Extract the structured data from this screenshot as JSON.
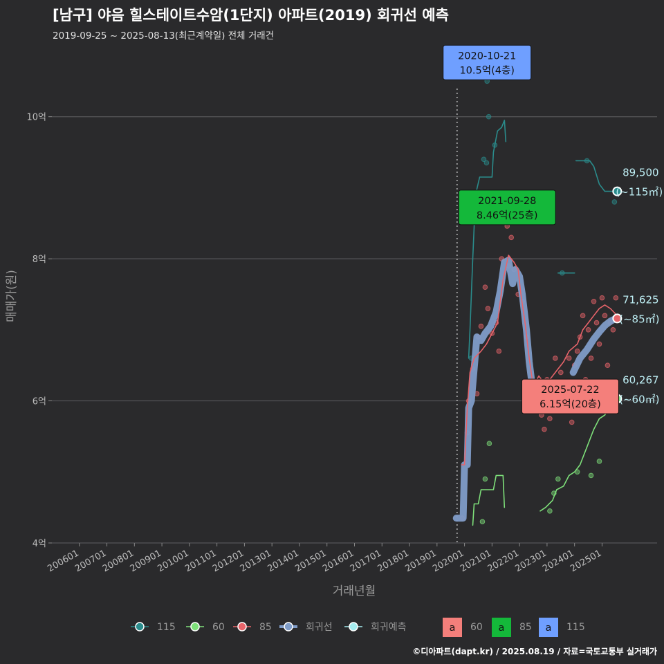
{
  "header": {
    "title": "[남구] 야음 힐스테이트수암(1단지) 아파트(2019) 회귀선 예측",
    "subtitle": "2019-09-25 ~ 2025-08-13(최근계약일) 전체 거래건"
  },
  "footer": {
    "credit": "©디아파트(dapt.kr) / 2025.08.19 / 자료=국토교통부 실거래가"
  },
  "chart_data": {
    "type": "line",
    "xlabel": "거래년월",
    "ylabel": "매매가(원)",
    "x_range": [
      2005.0,
      2027.0
    ],
    "ylim": [
      4.0,
      11.0
    ],
    "y_ticks": [
      {
        "value": 4,
        "label": "4억"
      },
      {
        "value": 6,
        "label": "6억"
      },
      {
        "value": 8,
        "label": "8억"
      },
      {
        "value": 10,
        "label": "10억"
      }
    ],
    "x_ticks": [
      {
        "value": 2006.0,
        "label": "200601"
      },
      {
        "value": 2007.0,
        "label": "200701"
      },
      {
        "value": 2008.0,
        "label": "200801"
      },
      {
        "value": 2009.0,
        "label": "200901"
      },
      {
        "value": 2010.0,
        "label": "201001"
      },
      {
        "value": 2011.0,
        "label": "201101"
      },
      {
        "value": 2012.0,
        "label": "201201"
      },
      {
        "value": 2013.0,
        "label": "201301"
      },
      {
        "value": 2014.0,
        "label": "201401"
      },
      {
        "value": 2015.0,
        "label": "201501"
      },
      {
        "value": 2016.0,
        "label": "201601"
      },
      {
        "value": 2017.0,
        "label": "201701"
      },
      {
        "value": 2018.0,
        "label": "201801"
      },
      {
        "value": 2019.0,
        "label": "201901"
      },
      {
        "value": 2020.0,
        "label": "202001"
      },
      {
        "value": 2021.0,
        "label": "202101"
      },
      {
        "value": 2022.0,
        "label": "202201"
      },
      {
        "value": 2023.0,
        "label": "202301"
      },
      {
        "value": 2024.0,
        "label": "202401"
      },
      {
        "value": 2025.0,
        "label": "202501"
      }
    ],
    "vline_x": 2019.73,
    "series": [
      {
        "name": "115",
        "color": "#2a8c8c",
        "lines": [
          [
            [
              2020.15,
              6.6
            ],
            [
              2020.2,
              7.0
            ],
            [
              2020.3,
              8.0
            ],
            [
              2020.4,
              8.9
            ],
            [
              2020.55,
              9.15
            ],
            [
              2021.0,
              9.15
            ],
            [
              2021.05,
              9.5
            ],
            [
              2021.2,
              9.8
            ],
            [
              2021.35,
              9.85
            ],
            [
              2021.45,
              9.95
            ],
            [
              2021.5,
              9.65
            ]
          ],
          [
            [
              2023.4,
              7.8
            ],
            [
              2023.6,
              7.8
            ],
            [
              2024.0,
              7.8
            ]
          ],
          [
            [
              2024.05,
              9.38
            ],
            [
              2024.55,
              9.38
            ],
            [
              2024.7,
              9.3
            ],
            [
              2024.9,
              9.05
            ],
            [
              2025.1,
              8.95
            ],
            [
              2025.3,
              8.95
            ],
            [
              2025.5,
              8.95
            ]
          ]
        ],
        "points": [
          [
            2020.25,
            6.6
          ],
          [
            2020.4,
            8.65
          ],
          [
            2020.7,
            9.4
          ],
          [
            2020.8,
            9.35
          ],
          [
            2020.82,
            10.5
          ],
          [
            2020.88,
            10.0
          ],
          [
            2021.1,
            9.6
          ],
          [
            2023.55,
            7.8
          ],
          [
            2024.45,
            9.38
          ],
          [
            2025.45,
            8.8
          ]
        ]
      },
      {
        "name": "60",
        "color": "#7ee07a",
        "lines": [
          [
            [
              2020.3,
              4.25
            ],
            [
              2020.35,
              4.55
            ],
            [
              2020.5,
              4.55
            ],
            [
              2020.6,
              4.75
            ],
            [
              2020.8,
              4.75
            ],
            [
              2021.05,
              4.75
            ],
            [
              2021.15,
              4.95
            ],
            [
              2021.4,
              4.95
            ],
            [
              2021.45,
              4.5
            ]
          ],
          [
            [
              2022.75,
              4.45
            ],
            [
              2022.95,
              4.5
            ],
            [
              2023.2,
              4.6
            ],
            [
              2023.35,
              4.75
            ],
            [
              2023.6,
              4.8
            ],
            [
              2023.8,
              4.95
            ],
            [
              2024.0,
              5.0
            ],
            [
              2024.2,
              5.1
            ],
            [
              2024.45,
              5.35
            ],
            [
              2024.7,
              5.6
            ],
            [
              2024.9,
              5.75
            ],
            [
              2025.1,
              5.8
            ],
            [
              2025.3,
              5.95
            ],
            [
              2025.45,
              6.0
            ],
            [
              2025.55,
              6.03
            ]
          ]
        ],
        "points": [
          [
            2020.65,
            4.3
          ],
          [
            2020.75,
            4.9
          ],
          [
            2020.9,
            5.4
          ],
          [
            2023.1,
            4.45
          ],
          [
            2023.25,
            4.7
          ],
          [
            2023.4,
            4.9
          ],
          [
            2024.1,
            5.0
          ],
          [
            2024.6,
            4.95
          ],
          [
            2024.9,
            5.15
          ],
          [
            2025.0,
            5.9
          ],
          [
            2025.3,
            6.1
          ]
        ]
      },
      {
        "name": "85",
        "color": "#e8646a",
        "lines": [
          [
            [
              2019.9,
              5.1
            ],
            [
              2020.0,
              5.1
            ],
            [
              2020.1,
              5.9
            ],
            [
              2020.2,
              6.4
            ],
            [
              2020.35,
              6.6
            ],
            [
              2020.6,
              6.7
            ],
            [
              2020.8,
              6.8
            ],
            [
              2021.0,
              6.95
            ],
            [
              2021.2,
              7.1
            ],
            [
              2021.4,
              7.7
            ],
            [
              2021.6,
              8.05
            ],
            [
              2021.8,
              7.95
            ],
            [
              2021.95,
              7.85
            ],
            [
              2022.05,
              7.5
            ],
            [
              2022.2,
              7.1
            ],
            [
              2022.35,
              6.6
            ],
            [
              2022.5,
              6.2
            ],
            [
              2022.7,
              6.35
            ],
            [
              2022.9,
              6.25
            ],
            [
              2023.1,
              6.3
            ],
            [
              2023.3,
              6.4
            ],
            [
              2023.6,
              6.55
            ],
            [
              2023.8,
              6.7
            ],
            [
              2024.1,
              6.8
            ],
            [
              2024.3,
              7.0
            ],
            [
              2024.5,
              7.1
            ],
            [
              2024.7,
              7.2
            ],
            [
              2024.9,
              7.3
            ],
            [
              2025.1,
              7.35
            ],
            [
              2025.3,
              7.3
            ],
            [
              2025.55,
              7.2
            ]
          ]
        ],
        "points": [
          [
            2019.92,
            4.35
          ],
          [
            2020.1,
            5.55
          ],
          [
            2020.15,
            6.0
          ],
          [
            2020.3,
            6.45
          ],
          [
            2020.45,
            6.1
          ],
          [
            2020.5,
            6.9
          ],
          [
            2020.6,
            7.05
          ],
          [
            2020.75,
            7.6
          ],
          [
            2020.85,
            7.3
          ],
          [
            2021.0,
            6.95
          ],
          [
            2021.15,
            7.1
          ],
          [
            2021.25,
            6.7
          ],
          [
            2021.35,
            8.0
          ],
          [
            2021.55,
            8.46
          ],
          [
            2021.6,
            7.9
          ],
          [
            2021.7,
            8.3
          ],
          [
            2021.8,
            7.85
          ],
          [
            2021.95,
            7.5
          ],
          [
            2022.1,
            7.4
          ],
          [
            2022.25,
            6.9
          ],
          [
            2022.4,
            6.2
          ],
          [
            2022.55,
            5.95
          ],
          [
            2022.65,
            6.1
          ],
          [
            2022.8,
            5.8
          ],
          [
            2022.9,
            5.6
          ],
          [
            2023.0,
            6.3
          ],
          [
            2023.1,
            5.75
          ],
          [
            2023.2,
            5.9
          ],
          [
            2023.3,
            6.6
          ],
          [
            2023.4,
            6.0
          ],
          [
            2023.5,
            6.4
          ],
          [
            2023.6,
            5.9
          ],
          [
            2023.7,
            6.1
          ],
          [
            2023.8,
            6.6
          ],
          [
            2023.9,
            5.7
          ],
          [
            2024.0,
            6.5
          ],
          [
            2024.1,
            6.7
          ],
          [
            2024.2,
            6.9
          ],
          [
            2024.3,
            7.2
          ],
          [
            2024.4,
            6.3
          ],
          [
            2024.5,
            7.0
          ],
          [
            2024.6,
            6.6
          ],
          [
            2024.7,
            7.4
          ],
          [
            2024.8,
            7.1
          ],
          [
            2024.9,
            6.8
          ],
          [
            2025.0,
            7.45
          ],
          [
            2025.1,
            7.2
          ],
          [
            2025.2,
            6.5
          ],
          [
            2025.3,
            7.1
          ],
          [
            2025.4,
            7.0
          ],
          [
            2025.5,
            7.45
          ]
        ]
      },
      {
        "name": "회귀선",
        "color": "#7f9cc8",
        "lines": [
          [
            [
              2019.7,
              4.35
            ],
            [
              2019.95,
              4.35
            ],
            [
              2020.0,
              5.1
            ],
            [
              2020.1,
              5.1
            ],
            [
              2020.15,
              5.9
            ],
            [
              2020.25,
              6.0
            ],
            [
              2020.35,
              6.45
            ],
            [
              2020.45,
              6.9
            ],
            [
              2020.6,
              6.85
            ],
            [
              2020.75,
              6.95
            ],
            [
              2020.95,
              7.05
            ],
            [
              2021.15,
              7.25
            ],
            [
              2021.3,
              7.55
            ],
            [
              2021.45,
              7.95
            ],
            [
              2021.6,
              7.98
            ],
            [
              2021.75,
              7.65
            ],
            [
              2021.85,
              7.85
            ],
            [
              2022.0,
              7.75
            ],
            [
              2022.1,
              7.5
            ],
            [
              2022.25,
              7.0
            ],
            [
              2022.35,
              6.55
            ],
            [
              2022.45,
              6.25
            ]
          ],
          [
            [
              2023.95,
              6.4
            ],
            [
              2024.2,
              6.6
            ],
            [
              2024.45,
              6.72
            ],
            [
              2024.7,
              6.87
            ],
            [
              2024.9,
              6.97
            ],
            [
              2025.1,
              7.06
            ],
            [
              2025.3,
              7.12
            ],
            [
              2025.5,
              7.16
            ]
          ]
        ]
      }
    ],
    "forecast_color": "#a5edf0",
    "end_points": [
      {
        "series": "115",
        "x": 2025.55,
        "y": 8.95,
        "color": "#2a8c8c",
        "value_label": "89,500",
        "area_label": "(~115㎡)"
      },
      {
        "series": "85",
        "x": 2025.55,
        "y": 7.16,
        "color": "#e8646a",
        "value_label": "71,625",
        "area_label": "(~85㎡)"
      },
      {
        "series": "60",
        "x": 2025.55,
        "y": 6.03,
        "color": "#7ee07a",
        "value_label": "60,267",
        "area_label": "(~60㎡)"
      }
    ],
    "annotations": [
      {
        "x": 2020.82,
        "y": 10.5,
        "date": "2020-10-21",
        "text": "10.5억(4층)",
        "color": "#6f9fff"
      },
      {
        "x": 2021.55,
        "y": 8.46,
        "date": "2021-09-28",
        "text": "8.46억(25층)",
        "color": "#14b83a"
      },
      {
        "x": 2025.05,
        "y": 6.15,
        "date": "2025-07-22",
        "text": "6.15억(20층)",
        "color": "#f47f7b"
      }
    ],
    "legend": {
      "items": [
        {
          "label": "115",
          "color": "#2a8c8c"
        },
        {
          "label": "60",
          "color": "#7ee07a"
        },
        {
          "label": "85",
          "color": "#e8646a"
        },
        {
          "label": "회귀선",
          "color": "#7f9cc8"
        },
        {
          "label": "회귀예측",
          "color": "#a5edf0"
        }
      ],
      "box_items": [
        {
          "glyph": "a",
          "label": "60",
          "color": "#f47f7b"
        },
        {
          "glyph": "a",
          "label": "85",
          "color": "#14b83a"
        },
        {
          "glyph": "a",
          "label": "115",
          "color": "#6f9fff"
        }
      ]
    }
  }
}
